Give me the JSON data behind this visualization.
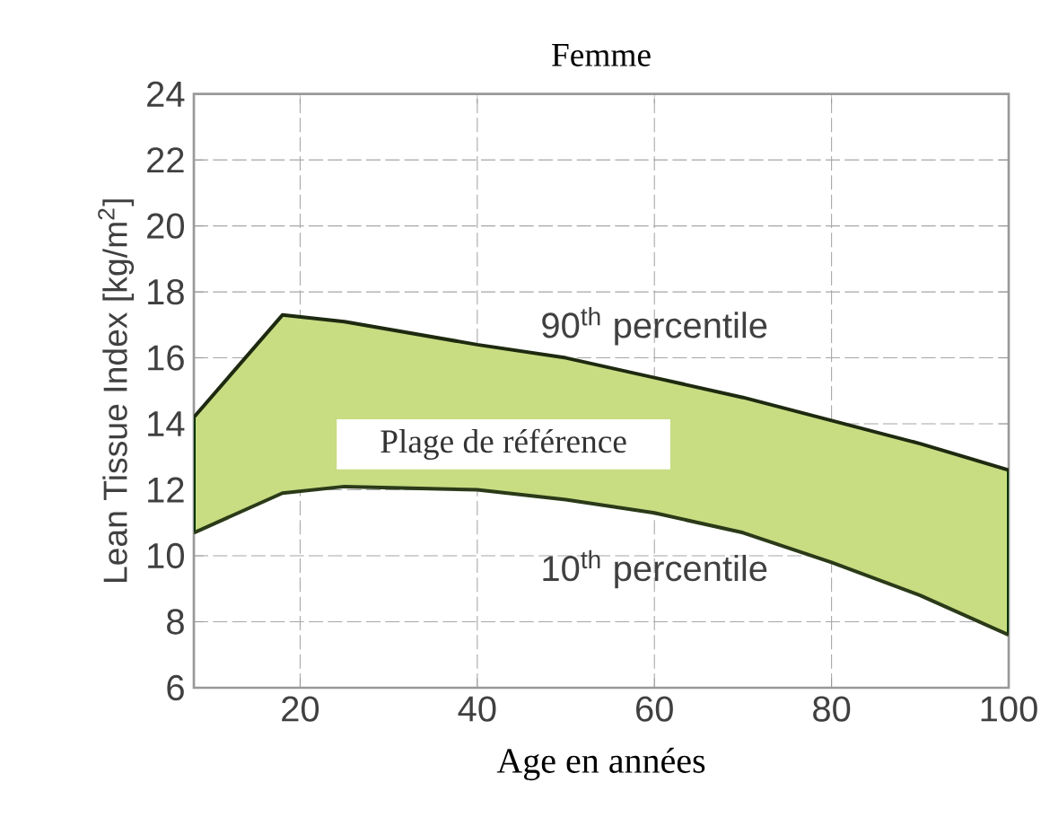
{
  "chart_data": {
    "type": "line",
    "title": "Femme",
    "xlabel": "Age en années",
    "ylabel": "Lean Tissue Index [kg/m$^{2}$]",
    "x": [
      8,
      18,
      25,
      40,
      50,
      60,
      70,
      80,
      90,
      100
    ],
    "series": [
      {
        "name": "90$^{th}$ percentile",
        "color": "#1e2a10",
        "values": [
          14.2,
          17.3,
          17.1,
          16.4,
          16.0,
          15.4,
          14.8,
          14.1,
          13.4,
          12.6
        ],
        "lower": [
          10.7,
          11.9,
          12.1,
          12.0,
          11.7,
          11.3,
          10.7,
          9.8,
          8.8,
          7.6
        ],
        "upper": [
          14.2,
          17.3,
          17.1,
          16.4,
          16.0,
          15.4,
          14.8,
          14.1,
          13.4,
          12.6
        ]
      },
      {
        "name": "10$^{th}$ percentile",
        "color": "#2b3a18",
        "values": [
          10.7,
          11.9,
          12.1,
          12.0,
          11.7,
          11.3,
          10.7,
          9.8,
          8.8,
          7.6
        ]
      }
    ],
    "annotations": [
      "Plage de référence"
    ],
    "xlim": [
      8,
      100
    ],
    "ylim": [
      6,
      24
    ],
    "xticks": [
      20,
      40,
      60,
      80,
      100
    ],
    "yticks": [
      6,
      8,
      10,
      12,
      14,
      16,
      18,
      20,
      22,
      24
    ],
    "grid": true
  }
}
